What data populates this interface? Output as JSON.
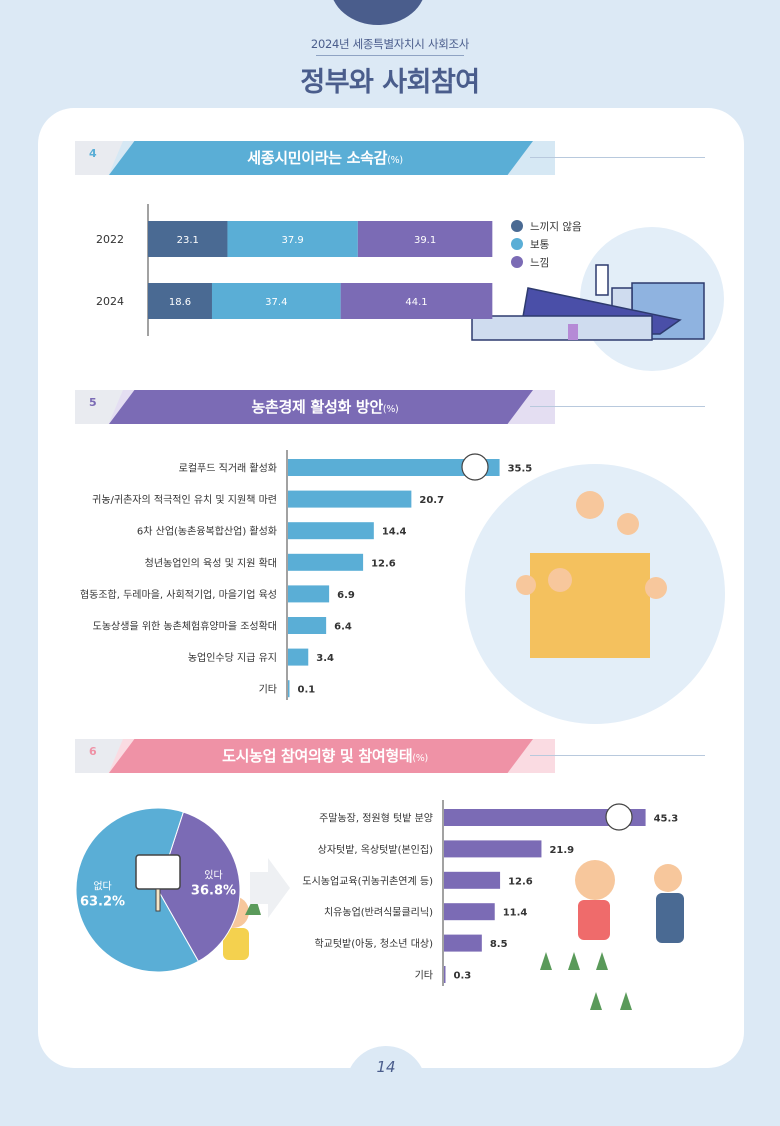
{
  "header": {
    "subtitle": "2024년 세종특별자치시 사회조사",
    "title": "정부와 사회참여"
  },
  "page_number": "14",
  "sections": [
    {
      "num": "4",
      "title": "세종시민이라는 소속감",
      "unit": "(%)",
      "color": "#5aaed6"
    },
    {
      "num": "5",
      "title": "농촌경제 활성화 방안",
      "unit": "(%)",
      "color": "#7b6bb5"
    },
    {
      "num": "6",
      "title": "도시농업 참여의향 및 참여형태",
      "unit": "(%)",
      "color": "#ef92a6"
    }
  ],
  "chart_data": [
    {
      "type": "bar",
      "orientation": "horizontal-stacked",
      "title": "세종시민이라는 소속감(%)",
      "categories": [
        "2022",
        "2024"
      ],
      "series": [
        {
          "name": "느끼지 않음",
          "color": "#4a6a93",
          "values": [
            23.1,
            18.6
          ]
        },
        {
          "name": "보통",
          "color": "#5aaed6",
          "values": [
            37.9,
            37.4
          ]
        },
        {
          "name": "느낌",
          "color": "#7b6bb5",
          "values": [
            39.1,
            44.1
          ]
        }
      ],
      "legend": "right"
    },
    {
      "type": "bar",
      "orientation": "horizontal",
      "title": "농촌경제 활성화 방안(%)",
      "color": "#5aaed6",
      "categories": [
        "로컬푸드 직거래 활성화",
        "귀농/귀촌자의 적극적인 유치 및 지원책 마련",
        "6차 산업(농촌융복합산업) 활성화",
        "청년농업인의 육성 및 지원 확대",
        "협동조합, 두레마을, 사회적기업, 마을기업 육성",
        "도농상생을 위한 농촌체험휴양마을 조성확대",
        "농업인수당 지급 유지",
        "기타"
      ],
      "values": [
        35.5,
        20.7,
        14.4,
        12.6,
        6.9,
        6.4,
        3.4,
        0.1
      ]
    },
    {
      "type": "pie",
      "title": "도시농업 참여의향(%)",
      "labels": [
        "있다",
        "없다"
      ],
      "values": [
        36.8,
        63.2
      ],
      "colors": [
        "#7b6bb5",
        "#5aaed6"
      ]
    },
    {
      "type": "bar",
      "orientation": "horizontal",
      "title": "도시농업 참여형태(%)",
      "color": "#7b6bb5",
      "categories": [
        "주말농장, 정원형 텃밭 분양",
        "상자텃밭, 옥상텃밭(본인집)",
        "도시농업교육(귀농귀촌연계 등)",
        "치유농업(반려식물클리닉)",
        "학교텃밭(아동, 청소년 대상)",
        "기타"
      ],
      "values": [
        45.3,
        21.9,
        12.6,
        11.4,
        8.5,
        0.3
      ]
    }
  ]
}
